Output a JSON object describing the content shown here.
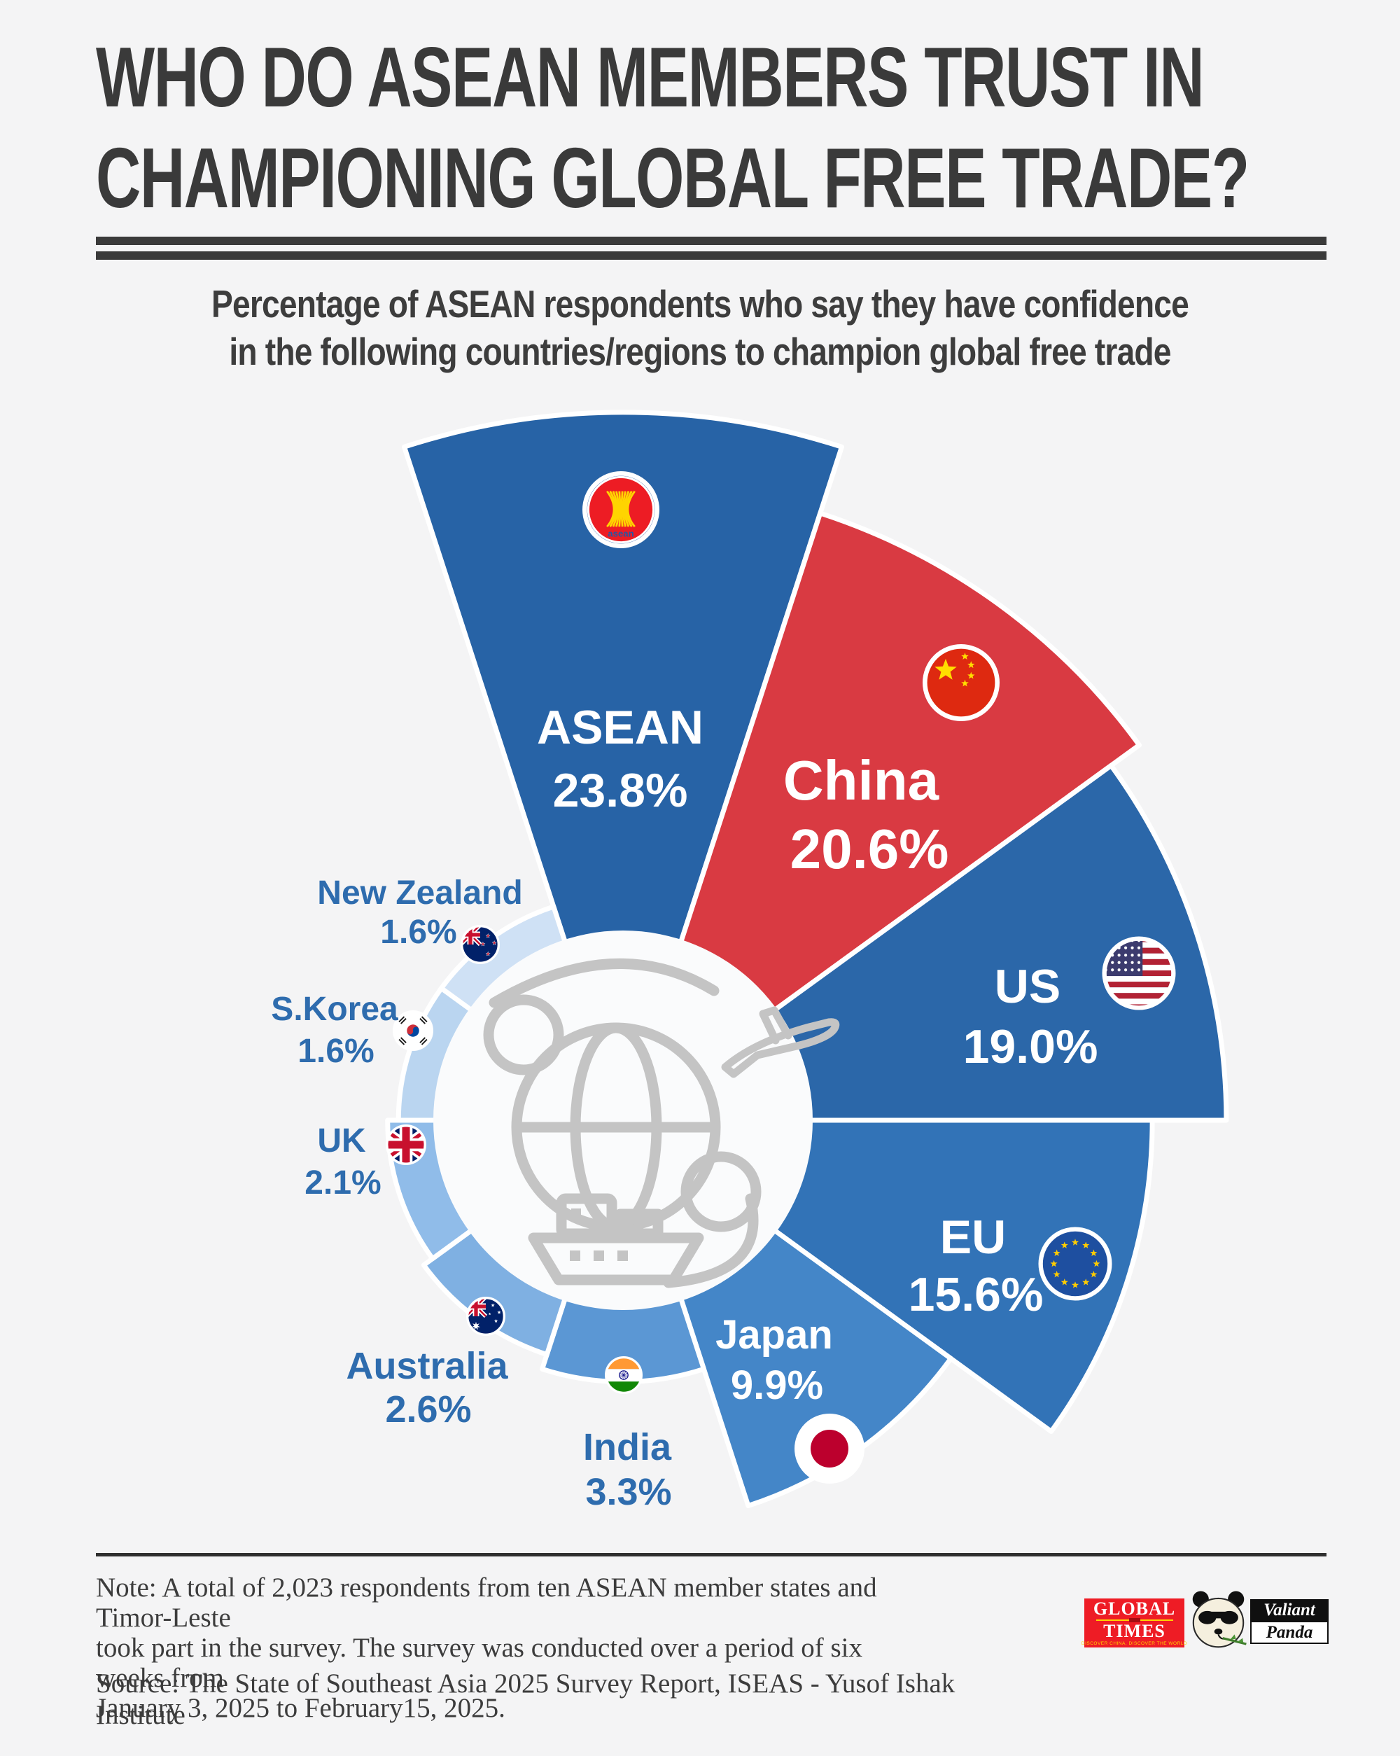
{
  "header": {
    "title_line1": "WHO DO ASEAN MEMBERS TRUST IN",
    "title_line2": "CHAMPIONING GLOBAL FREE TRADE?",
    "subtitle_line1": "Percentage of ASEAN respondents who say they have confidence",
    "subtitle_line2": "in the following countries/regions to champion global free trade"
  },
  "chart_data": {
    "type": "rose",
    "title": "Percentage of ASEAN respondents who say they have confidence in the following countries/regions to champion global free trade",
    "unit": "%",
    "start_angle_deg": -18,
    "segment_sweep_deg": 36,
    "legend_position": "on-chart",
    "series": [
      {
        "label": "ASEAN",
        "value": 23.8,
        "display": "23.8%",
        "color": "#2763a6",
        "flag": "asean",
        "text_color": "#ffffff"
      },
      {
        "label": "China",
        "value": 20.6,
        "display": "20.6%",
        "color": "#d93a42",
        "flag": "china",
        "text_color": "#ffffff"
      },
      {
        "label": "US",
        "value": 19.0,
        "display": "19.0%",
        "color": "#2b67a9",
        "flag": "us",
        "text_color": "#ffffff"
      },
      {
        "label": "EU",
        "value": 15.6,
        "display": "15.6%",
        "color": "#3273b7",
        "flag": "eu",
        "text_color": "#ffffff"
      },
      {
        "label": "Japan",
        "value": 9.9,
        "display": "9.9%",
        "color": "#4486c8",
        "flag": "japan",
        "text_color": "#ffffff"
      },
      {
        "label": "India",
        "value": 3.3,
        "display": "3.3%",
        "color": "#5b97d4",
        "flag": "india",
        "text_color": "#2e6cae"
      },
      {
        "label": "Australia",
        "value": 2.6,
        "display": "2.6%",
        "color": "#7fb0e2",
        "flag": "australia",
        "text_color": "#2e6cae"
      },
      {
        "label": "UK",
        "value": 2.1,
        "display": "2.1%",
        "color": "#90bce9",
        "flag": "uk",
        "text_color": "#2e6cae"
      },
      {
        "label": "S.Korea",
        "value": 1.6,
        "display": "1.6%",
        "color": "#bad5f0",
        "flag": "skorea",
        "text_color": "#2e6cae"
      },
      {
        "label": "New Zealand",
        "value": 1.6,
        "display": "1.6%",
        "color": "#cfe1f5",
        "flag": "nz",
        "text_color": "#2e6cae"
      }
    ]
  },
  "footer": {
    "note_line1": "Note: A total of 2,023 respondents from ten ASEAN member states and Timor-Leste",
    "note_line2": "took part in the survey. The survey was conducted over a period of six weeks from",
    "note_line3": "January 3, 2025 to February15, 2025.",
    "source": "Source: The State of Southeast Asia 2025 Survey Report, ISEAS - Yusof Ishak Institute",
    "logos": {
      "global_times": {
        "word1": "GLOBAL",
        "word2": "TIMES",
        "tagline": "DISCOVER CHINA, DISCOVER THE WORLD"
      },
      "valiant_panda": {
        "word1": "Valiant",
        "word2": "Panda"
      }
    }
  }
}
